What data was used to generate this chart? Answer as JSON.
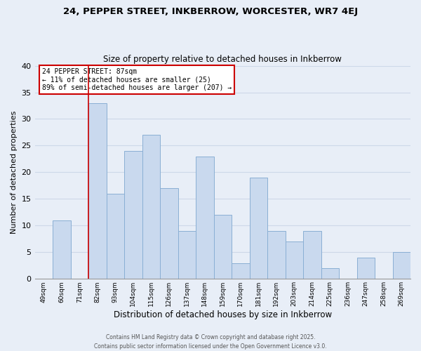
{
  "title": "24, PEPPER STREET, INKBERROW, WORCESTER, WR7 4EJ",
  "subtitle": "Size of property relative to detached houses in Inkberrow",
  "xlabel": "Distribution of detached houses by size in Inkberrow",
  "ylabel": "Number of detached properties",
  "bar_labels": [
    "49sqm",
    "60sqm",
    "71sqm",
    "82sqm",
    "93sqm",
    "104sqm",
    "115sqm",
    "126sqm",
    "137sqm",
    "148sqm",
    "159sqm",
    "170sqm",
    "181sqm",
    "192sqm",
    "203sqm",
    "214sqm",
    "225sqm",
    "236sqm",
    "247sqm",
    "258sqm",
    "269sqm"
  ],
  "bar_values": [
    0,
    11,
    0,
    33,
    16,
    24,
    27,
    17,
    9,
    23,
    12,
    3,
    19,
    9,
    7,
    9,
    2,
    0,
    4,
    0,
    5
  ],
  "bar_color": "#c9d9ee",
  "bar_edge_color": "#8aafd4",
  "ylim": [
    0,
    40
  ],
  "yticks": [
    0,
    5,
    10,
    15,
    20,
    25,
    30,
    35,
    40
  ],
  "red_line_index": 3,
  "annotation_text": "24 PEPPER STREET: 87sqm\n← 11% of detached houses are smaller (25)\n89% of semi-detached houses are larger (207) →",
  "annotation_box_color": "#ffffff",
  "annotation_box_edge": "#cc0000",
  "grid_color": "#cdd8e8",
  "background_color": "#e8eef7",
  "footer_line1": "Contains HM Land Registry data © Crown copyright and database right 2025.",
  "footer_line2": "Contains public sector information licensed under the Open Government Licence v3.0."
}
